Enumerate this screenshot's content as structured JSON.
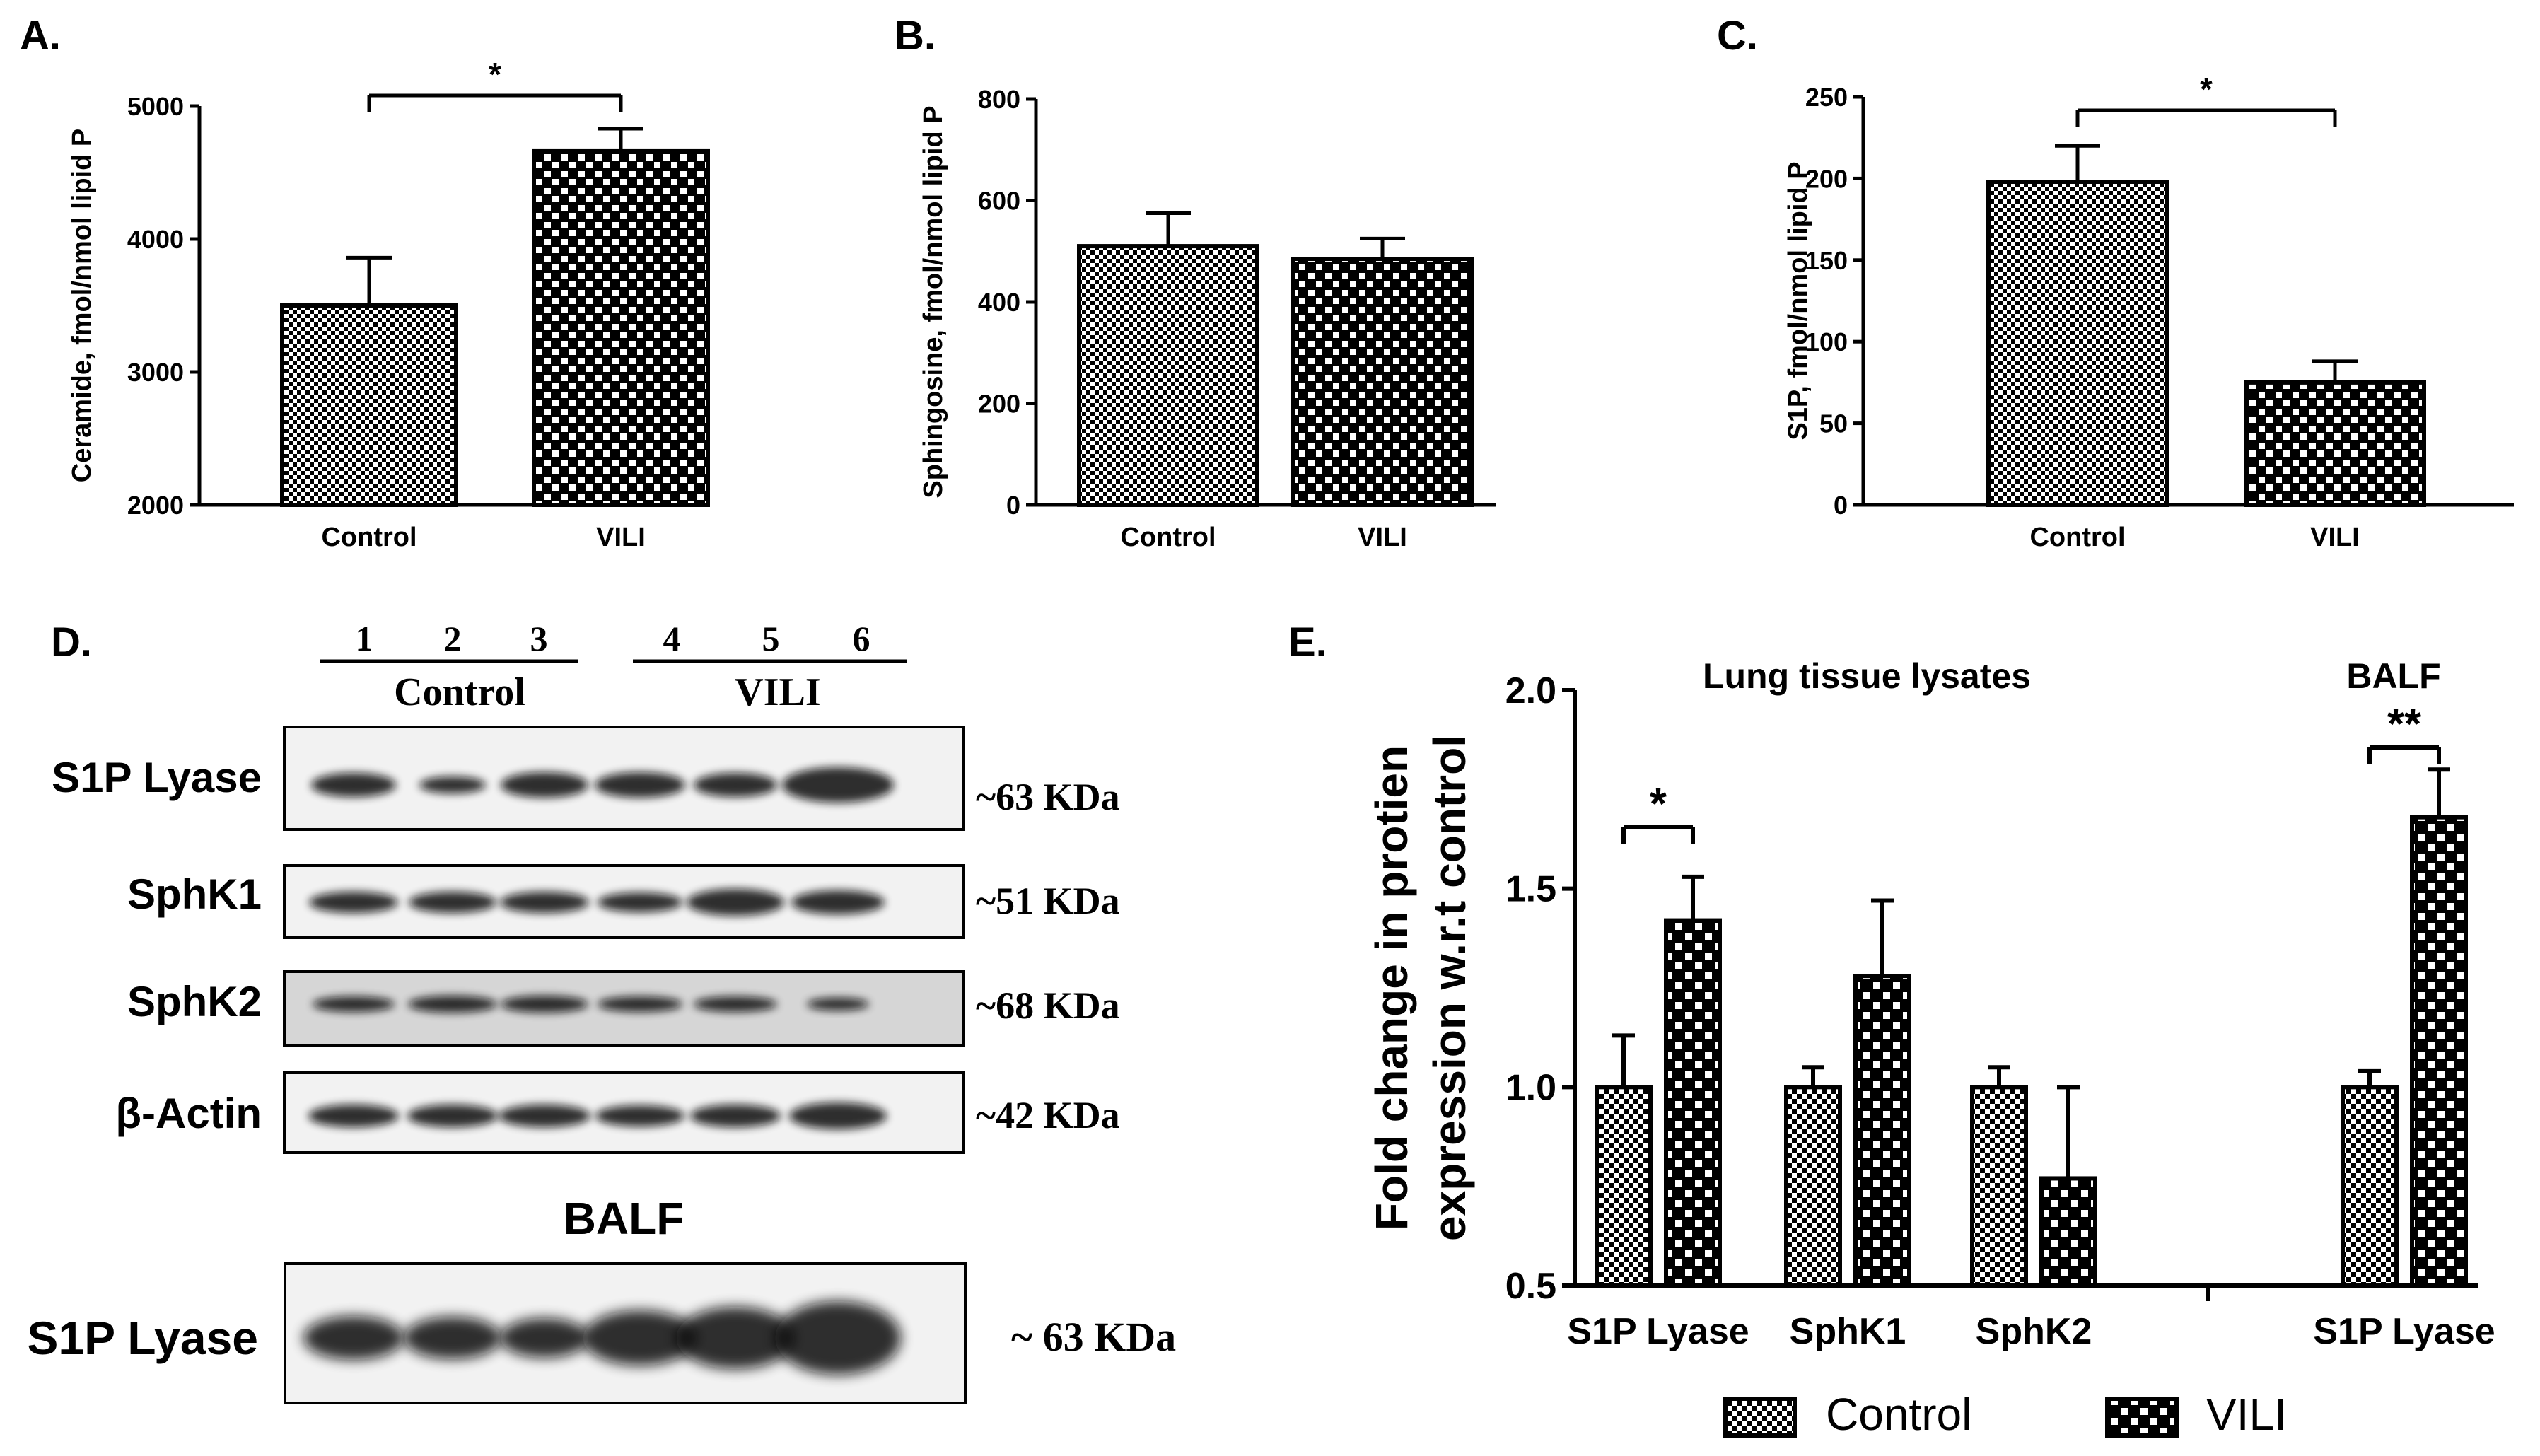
{
  "panels": {
    "a": "A.",
    "b": "B.",
    "c": "C.",
    "d": "D.",
    "e": "E."
  },
  "chart_data": [
    {
      "type": "bar",
      "categories": [
        "Control",
        "VILI"
      ],
      "values": [
        3500,
        4660
      ],
      "errors": [
        360,
        170
      ],
      "ylabel": "Ceramide, fmol/nmol lipid P",
      "ylim": [
        2000,
        5000
      ],
      "yticks": [
        2000,
        3000,
        4000,
        5000
      ],
      "significance": "*"
    },
    {
      "type": "bar",
      "categories": [
        "Control",
        "VILI"
      ],
      "values": [
        510,
        485
      ],
      "errors": [
        65,
        40
      ],
      "ylabel": "Sphingosine, fmol/nmol lipid P",
      "ylim": [
        0,
        800
      ],
      "yticks": [
        0,
        200,
        400,
        600,
        800
      ]
    },
    {
      "type": "bar",
      "categories": [
        "Control",
        "VILI"
      ],
      "values": [
        198,
        75
      ],
      "errors": [
        22,
        13
      ],
      "ylabel": "S1P, fmol/nmol lipid P",
      "ylim": [
        0,
        250
      ],
      "yticks": [
        0,
        50,
        100,
        150,
        200,
        250
      ],
      "significance": "*"
    },
    {
      "type": "bar",
      "categories": [
        "S1P  Lyase",
        "SphK1",
        "SphK2",
        "S1P Lyase"
      ],
      "groups": [
        "Lung tissue lysates",
        "BALF"
      ],
      "series": [
        {
          "name": "Control",
          "values": [
            1.0,
            1.0,
            1.0,
            1.0
          ],
          "errors": [
            0.13,
            0.05,
            0.05,
            0.04
          ]
        },
        {
          "name": "VILI",
          "values": [
            1.42,
            1.28,
            0.77,
            1.68
          ],
          "errors": [
            0.11,
            0.19,
            0.23,
            0.12
          ]
        }
      ],
      "ylabel": [
        "Fold change in protien",
        "expression w.r.t control"
      ],
      "ylim": [
        0.5,
        2.0
      ],
      "yticks": [
        "0.5",
        "1.0",
        "1.5",
        "2.0"
      ],
      "significance": [
        "*",
        "**"
      ],
      "legend_position": "bottom"
    }
  ],
  "blot": {
    "lanes": [
      "1",
      "2",
      "3",
      "4",
      "5",
      "6"
    ],
    "groups": [
      "Control",
      "VILI"
    ],
    "rows": [
      {
        "label": "S1P Lyase",
        "size": "~63 KDa"
      },
      {
        "label": "SphK1",
        "size": "~51 KDa"
      },
      {
        "label": "SphK2",
        "size": "~68 KDa"
      },
      {
        "label": "β-Actin",
        "size": "~42 KDa"
      }
    ],
    "balf_title": "BALF",
    "balf_row": {
      "label": "S1P Lyase",
      "size": "~ 63 KDa"
    }
  },
  "colors": {
    "ink": "#000000",
    "blot_bg": "#f2f2f2",
    "sphk2_bg": "#d6d6d6",
    "band": "#111111"
  }
}
